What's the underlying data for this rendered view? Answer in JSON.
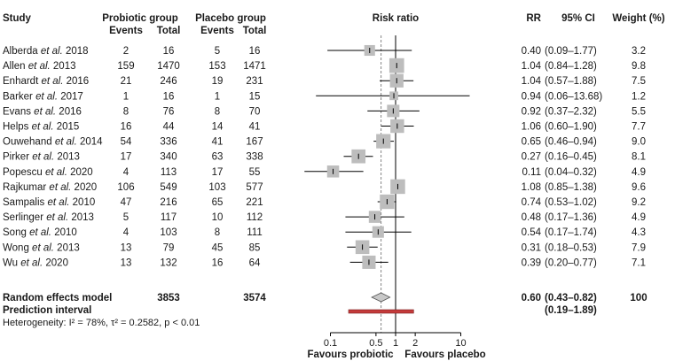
{
  "chart_data": {
    "type": "forest",
    "headers": {
      "study": "Study",
      "probiotic": "Probiotic group",
      "placebo": "Placebo group",
      "events": "Events",
      "total": "Total",
      "risk_ratio": "Risk ratio",
      "rr": "RR",
      "ci": "95% CI",
      "weight": "Weight (%)"
    },
    "studies": [
      {
        "author": "Alberda",
        "suffix": " et al. 2018",
        "e1": "2",
        "n1": "16",
        "e2": "5",
        "n2": "16",
        "rr_text": "0.40",
        "ci_text": "(0.09–1.77)",
        "weight": "3.2",
        "rr": 0.4,
        "lo": 0.09,
        "hi": 1.77,
        "w": 3.2
      },
      {
        "author": "Allen",
        "suffix": " et al. 2013",
        "e1": "159",
        "n1": "1470",
        "e2": "153",
        "n2": "1471",
        "rr_text": "1.04",
        "ci_text": "(0.84–1.28)",
        "weight": "9.8",
        "rr": 1.04,
        "lo": 0.84,
        "hi": 1.28,
        "w": 9.8
      },
      {
        "author": "Enhardt",
        "suffix": " et al. 2016",
        "e1": "21",
        "n1": "246",
        "e2": "19",
        "n2": "231",
        "rr_text": "1.04",
        "ci_text": "(0.57–1.88)",
        "weight": "7.5",
        "rr": 1.04,
        "lo": 0.57,
        "hi": 1.88,
        "w": 7.5
      },
      {
        "author": "Barker",
        "suffix": " et al. 2017",
        "e1": "1",
        "n1": "16",
        "e2": "1",
        "n2": "15",
        "rr_text": "0.94",
        "ci_text": "(0.06–13.68)",
        "weight": "1.2",
        "rr": 0.94,
        "lo": 0.06,
        "hi": 13.68,
        "w": 1.2
      },
      {
        "author": "Evans",
        "suffix": " et al. 2016",
        "e1": "8",
        "n1": "76",
        "e2": "8",
        "n2": "70",
        "rr_text": "0.92",
        "ci_text": "(0.37–2.32)",
        "weight": "5.5",
        "rr": 0.92,
        "lo": 0.37,
        "hi": 2.32,
        "w": 5.5
      },
      {
        "author": "Helps",
        "suffix": " et al. 2015",
        "e1": "16",
        "n1": "44",
        "e2": "14",
        "n2": "41",
        "rr_text": "1.06",
        "ci_text": "(0.60–1.90)",
        "weight": "7.7",
        "rr": 1.06,
        "lo": 0.6,
        "hi": 1.9,
        "w": 7.7
      },
      {
        "author": "Ouwehand",
        "suffix": " et al. 2014",
        "e1": "54",
        "n1": "336",
        "e2": "41",
        "n2": "167",
        "rr_text": "0.65",
        "ci_text": "(0.46–0.94)",
        "weight": "9.0",
        "rr": 0.65,
        "lo": 0.46,
        "hi": 0.94,
        "w": 9.0
      },
      {
        "author": "Pirker",
        "suffix": " et al. 2013",
        "e1": "17",
        "n1": "340",
        "e2": "63",
        "n2": "338",
        "rr_text": "0.27",
        "ci_text": "(0.16–0.45)",
        "weight": "8.1",
        "rr": 0.27,
        "lo": 0.16,
        "hi": 0.45,
        "w": 8.1
      },
      {
        "author": "Popescu",
        "suffix": " et al. 2020",
        "e1": "4",
        "n1": "113",
        "e2": "17",
        "n2": "55",
        "rr_text": "0.11",
        "ci_text": "(0.04–0.32)",
        "weight": "4.9",
        "rr": 0.11,
        "lo": 0.04,
        "hi": 0.32,
        "w": 4.9
      },
      {
        "author": "Rajkumar",
        "suffix": " et al. 2020",
        "e1": "106",
        "n1": "549",
        "e2": "103",
        "n2": "577",
        "rr_text": "1.08",
        "ci_text": "(0.85–1.38)",
        "weight": "9.6",
        "rr": 1.08,
        "lo": 0.85,
        "hi": 1.38,
        "w": 9.6
      },
      {
        "author": "Sampalis",
        "suffix": " et al. 2010",
        "e1": "47",
        "n1": "216",
        "e2": "65",
        "n2": "221",
        "rr_text": "0.74",
        "ci_text": "(0.53–1.02)",
        "weight": "9.2",
        "rr": 0.74,
        "lo": 0.53,
        "hi": 1.02,
        "w": 9.2
      },
      {
        "author": "Serlinger",
        "suffix": " et al. 2013",
        "e1": "5",
        "n1": "117",
        "e2": "10",
        "n2": "112",
        "rr_text": "0.48",
        "ci_text": "(0.17–1.36)",
        "weight": "4.9",
        "rr": 0.48,
        "lo": 0.17,
        "hi": 1.36,
        "w": 4.9
      },
      {
        "author": "Song",
        "suffix": " et al. 2010",
        "e1": "4",
        "n1": "103",
        "e2": "8",
        "n2": "111",
        "rr_text": "0.54",
        "ci_text": "(0.17–1.74)",
        "weight": "4.3",
        "rr": 0.54,
        "lo": 0.17,
        "hi": 1.74,
        "w": 4.3
      },
      {
        "author": "Wong",
        "suffix": " et al. 2013",
        "e1": "13",
        "n1": "79",
        "e2": "45",
        "n2": "85",
        "rr_text": "0.31",
        "ci_text": "(0.18–0.53)",
        "weight": "7.9",
        "rr": 0.31,
        "lo": 0.18,
        "hi": 0.53,
        "w": 7.9
      },
      {
        "author": "Wu",
        "suffix": " et al. 2020",
        "e1": "13",
        "n1": "132",
        "e2": "16",
        "n2": "64",
        "rr_text": "0.39",
        "ci_text": "(0.20–0.77)",
        "weight": "7.1",
        "rr": 0.39,
        "lo": 0.2,
        "hi": 0.77,
        "w": 7.1
      }
    ],
    "summary": {
      "label": "Random effects model",
      "n1": "3853",
      "n2": "3574",
      "rr_text": "0.60",
      "ci_text": "(0.43–0.82)",
      "weight": "100",
      "rr": 0.6,
      "lo": 0.43,
      "hi": 0.82
    },
    "prediction": {
      "label": "Prediction interval",
      "ci_text": "(0.19–1.89)",
      "lo": 0.19,
      "hi": 1.89
    },
    "heterogeneity": "Heterogeneity: I² = 78%, τ² = 0.2582, p < 0.01",
    "x_axis": {
      "scale": "log",
      "range": [
        0.06,
        14
      ],
      "ticks": [
        0.1,
        0.5,
        1,
        2,
        10
      ],
      "tick_labels": [
        "0.1",
        "0.5",
        "1",
        "2",
        "10"
      ],
      "null_value": 1
    },
    "favours_left": "Favours probiotic",
    "favours_right": "Favours placebo",
    "colors": {
      "square": "#bdbdbd",
      "diamond": "#c8c8c8",
      "prediction": "#c43a3a",
      "line": "#000000"
    }
  }
}
